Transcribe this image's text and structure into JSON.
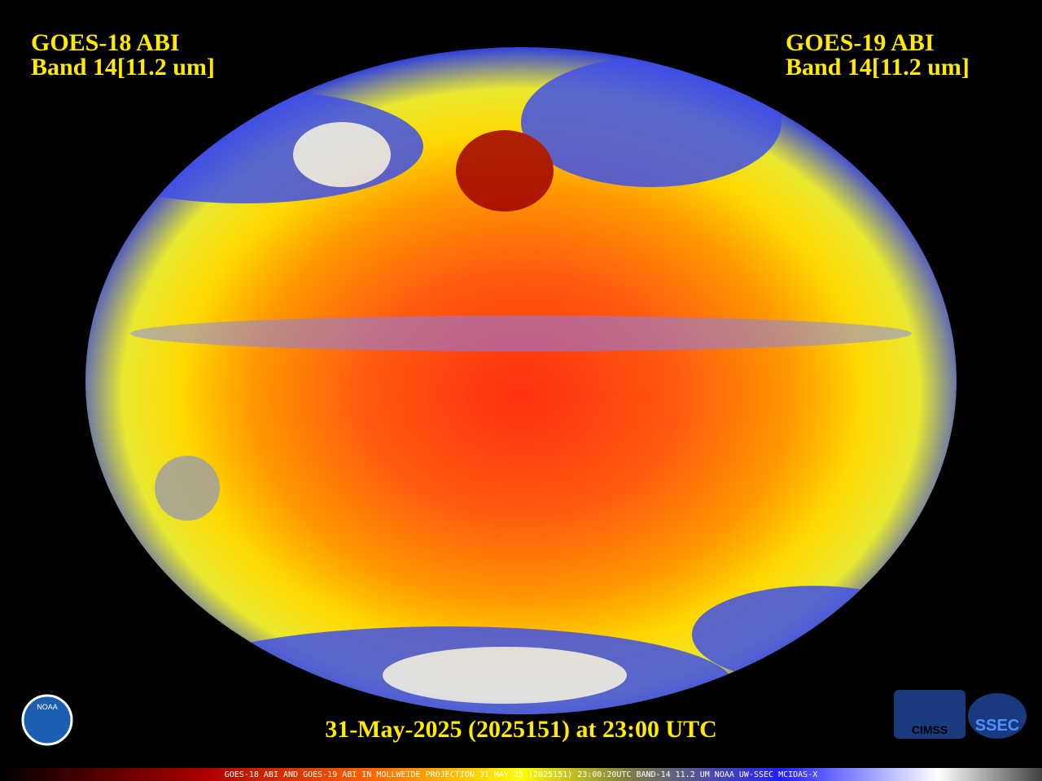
{
  "header": {
    "left": {
      "title": "GOES-18 ABI",
      "band": "Band 14[11.2 um]"
    },
    "right": {
      "title": "GOES-19 ABI",
      "band": "Band 14[11.2 um]"
    }
  },
  "timestamp": "31-May-2025 (2025151) at 23:00 UTC",
  "footer": "GOES-18 ABI AND GOES-19 ABI IN MOLLWEIDE PROJECTION 31 MAY 25 (2025151) 23:00:20UTC BAND-14 11.2 UM NOAA UW-SSEC MCIDAS-X",
  "logos": [
    "NOAA",
    "CIMSS",
    "SSEC"
  ]
}
